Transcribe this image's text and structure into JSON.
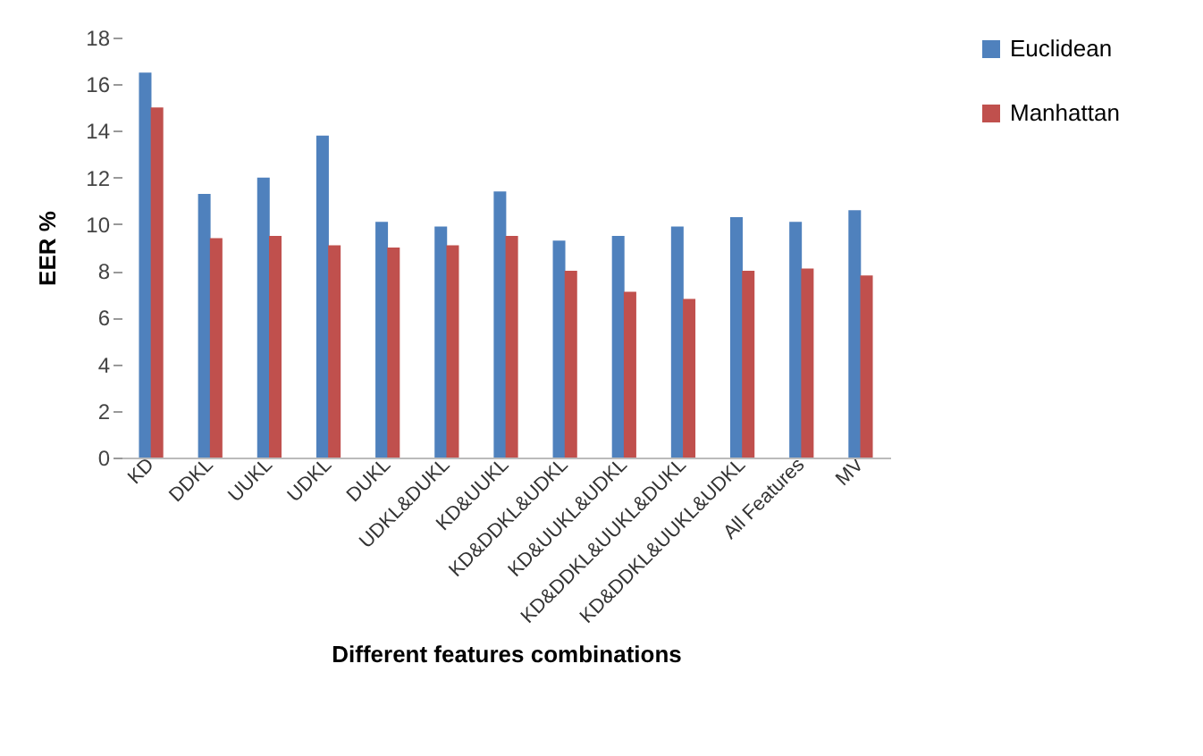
{
  "chart_data": {
    "type": "bar",
    "xlabel": "Different features combinations",
    "ylabel": "EER %",
    "categories": [
      "KD",
      "DDKL",
      "UUKL",
      "UDKL",
      "DUKL",
      "UDKL&DUKL",
      "KD&UUKL",
      "KD&DDKL&UDKL",
      "KD&UUKL&UDKL",
      "KD&DDKL&UUKL&DUKL",
      "KD&DDKL&UUKL&UDKL",
      "All Features",
      "MV"
    ],
    "series": [
      {
        "name": "Euclidean",
        "color": "#4f81bd",
        "values": [
          16.5,
          11.3,
          12.0,
          13.8,
          10.1,
          9.9,
          11.4,
          9.3,
          9.5,
          9.9,
          10.3,
          10.1,
          10.6
        ]
      },
      {
        "name": "Manhattan",
        "color": "#c0504d",
        "values": [
          15.0,
          9.4,
          9.5,
          9.1,
          9.0,
          9.1,
          9.5,
          8.0,
          7.1,
          6.8,
          8.0,
          8.1,
          7.8
        ]
      }
    ],
    "ylim": [
      0,
      18
    ],
    "yticks": [
      0,
      2,
      4,
      6,
      8,
      10,
      12,
      14,
      16,
      18
    ],
    "grid": false,
    "legend": "right"
  }
}
